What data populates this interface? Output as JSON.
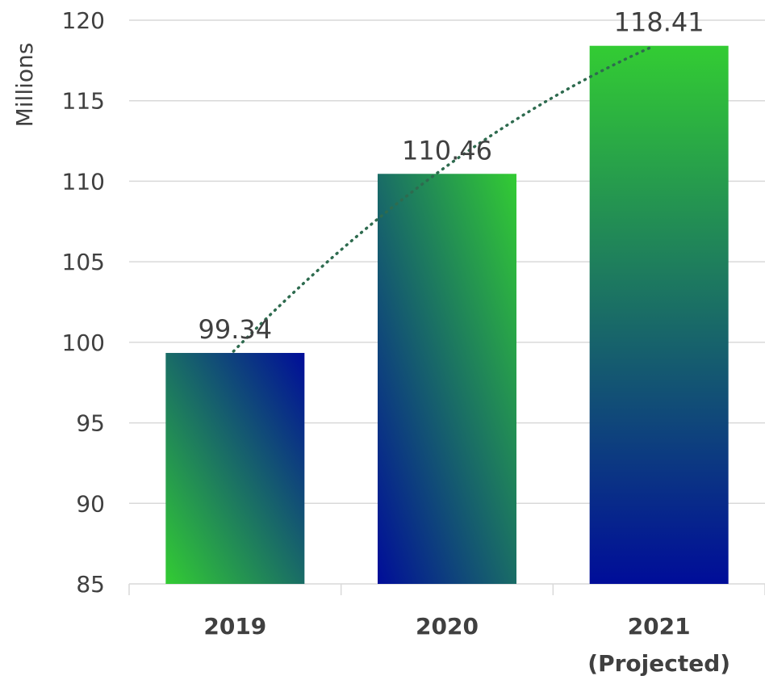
{
  "chart_data": {
    "type": "bar",
    "categories": [
      [
        "2019"
      ],
      [
        "2020"
      ],
      [
        "2021",
        "(Projected)"
      ]
    ],
    "values": [
      99.34,
      110.46,
      118.41
    ],
    "data_labels": [
      "99.34",
      "110.46",
      "118.41"
    ],
    "ylabel": "Millions",
    "ylim": [
      85,
      120
    ],
    "yticks": [
      85,
      90,
      95,
      100,
      105,
      110,
      115,
      120
    ],
    "grid": true,
    "trendline": {
      "style": "dotted",
      "color": "#2e6b4f"
    },
    "colors": {
      "gradient_green": "#33cc33",
      "gradient_blue": "#000d99",
      "grid": "#d9d9d9",
      "text": "#404040"
    }
  }
}
